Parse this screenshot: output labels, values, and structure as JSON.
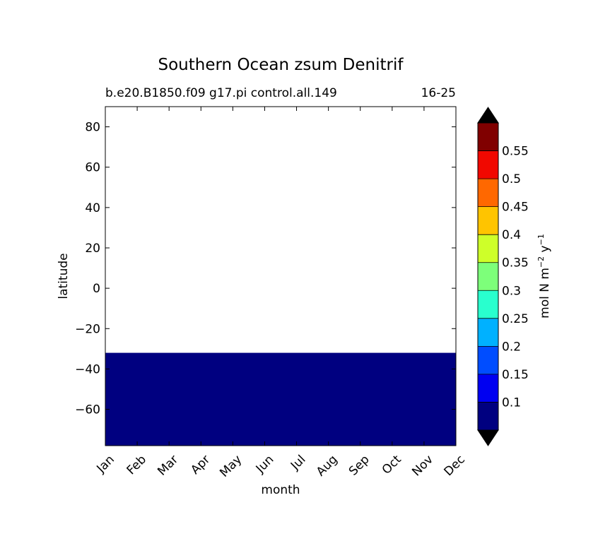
{
  "chart_data": {
    "type": "heatmap",
    "title": "Southern Ocean zsum Denitrif",
    "subtitle_left": "b.e20.B1850.f09 g17.pi control.all.149",
    "subtitle_right": "16-25",
    "xlabel": "month",
    "ylabel": "latitude",
    "x_categories": [
      "Jan",
      "Feb",
      "Mar",
      "Apr",
      "May",
      "Jun",
      "Jul",
      "Aug",
      "Sep",
      "Oct",
      "Nov",
      "Dec"
    ],
    "ylim": [
      -78,
      90
    ],
    "y_ticks": [
      80,
      60,
      40,
      20,
      0,
      -20,
      -40,
      -60
    ],
    "y_tick_labels": [
      "80",
      "60",
      "40",
      "20",
      "0",
      "−20",
      "−40",
      "−60"
    ],
    "filled_region": {
      "lat_min": -78,
      "lat_max": -32,
      "value_level": "below 0.1",
      "color": "#000080"
    },
    "colorbar": {
      "label": "mol N m",
      "label_exp1": "−2",
      "label_mid": " y",
      "label_exp2": "−1",
      "levels": [
        0.05,
        0.1,
        0.15,
        0.2,
        0.25,
        0.3,
        0.35,
        0.4,
        0.45,
        0.5,
        0.55,
        0.6
      ],
      "tick_values": [
        0.1,
        0.15,
        0.2,
        0.25,
        0.3,
        0.35,
        0.4,
        0.45,
        0.5,
        0.55
      ],
      "tick_labels": [
        "0.1",
        "0.15",
        "0.2",
        "0.25",
        "0.3",
        "0.35",
        "0.4",
        "0.45",
        "0.5",
        "0.55"
      ],
      "colors": [
        "#000080",
        "#0000F1",
        "#004DFF",
        "#00B1FF",
        "#29FFCE",
        "#7DFF7A",
        "#CEFF29",
        "#FFC400",
        "#FF6800",
        "#F10800",
        "#800000"
      ],
      "extend_min_color": "#000000",
      "extend_max_color": "#000000"
    }
  }
}
